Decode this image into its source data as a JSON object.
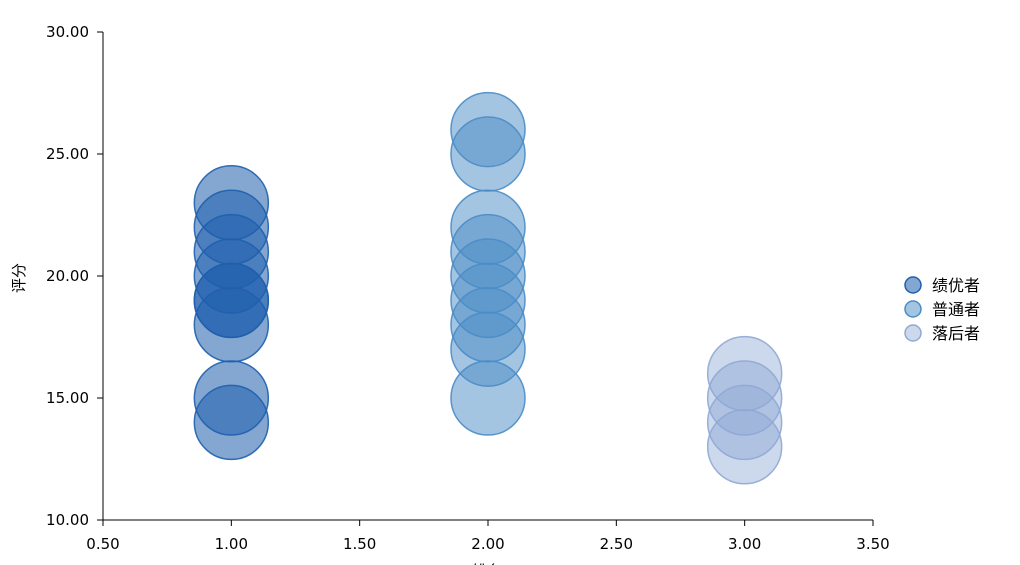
{
  "chart_data": {
    "type": "scatter",
    "subtype": "bubble",
    "title": "",
    "xlabel": "排名",
    "ylabel": "评分",
    "xlim": [
      0.5,
      3.5
    ],
    "ylim": [
      10,
      30
    ],
    "x_ticks": [
      "0.50",
      "1.00",
      "1.50",
      "2.00",
      "2.50",
      "3.00",
      "3.50"
    ],
    "y_ticks": [
      "10.00",
      "15.00",
      "20.00",
      "25.00",
      "30.00"
    ],
    "grid": false,
    "legend_position": "right",
    "series": [
      {
        "name": "绩优者",
        "color": "#1f5fad",
        "fill_opacity": 0.55,
        "x": [
          1,
          1,
          1,
          1,
          1,
          1,
          1,
          1,
          1
        ],
        "y": [
          23,
          22,
          21,
          20,
          19,
          19,
          18,
          15,
          14
        ]
      },
      {
        "name": "普通者",
        "color": "#4a8cc6",
        "fill_opacity": 0.5,
        "x": [
          2,
          2,
          2,
          2,
          2,
          2,
          2,
          2,
          2
        ],
        "y": [
          26,
          25,
          22,
          21,
          20,
          19,
          18,
          17,
          15
        ]
      },
      {
        "name": "落后者",
        "color": "#8fa9d4",
        "fill_opacity": 0.45,
        "x": [
          3,
          3,
          3,
          3
        ],
        "y": [
          16,
          15,
          14,
          13
        ]
      }
    ]
  }
}
